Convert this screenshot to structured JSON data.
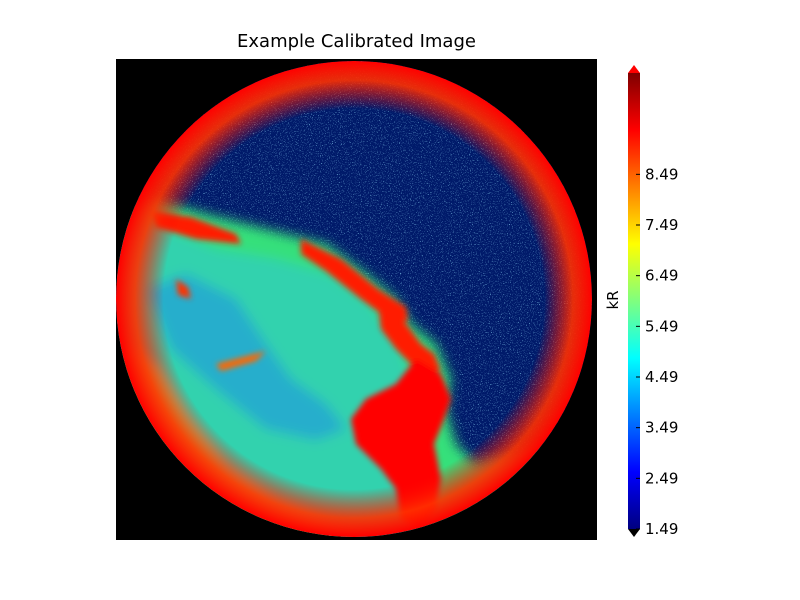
{
  "chart_data": {
    "type": "heatmap",
    "title": "Example Calibrated Image",
    "image_shape": "circular all-sky image on black background",
    "colormap": "jet",
    "colorbar": {
      "label": "kR",
      "tick_labels": [
        "1.49",
        "2.49",
        "3.49",
        "4.49",
        "5.49",
        "6.49",
        "7.49",
        "8.49"
      ],
      "tick_values": [
        1.49,
        2.49,
        3.49,
        4.49,
        5.49,
        6.49,
        7.49,
        8.49
      ],
      "range": [
        1.49,
        10.49
      ],
      "extend": "both",
      "colors": [
        "#00007f",
        "#0000ff",
        "#007fff",
        "#00ffff",
        "#7fff7f",
        "#ffff00",
        "#ff7f00",
        "#ff0000",
        "#7f0000"
      ]
    },
    "axes_visible": false,
    "background_color": "#000000"
  }
}
